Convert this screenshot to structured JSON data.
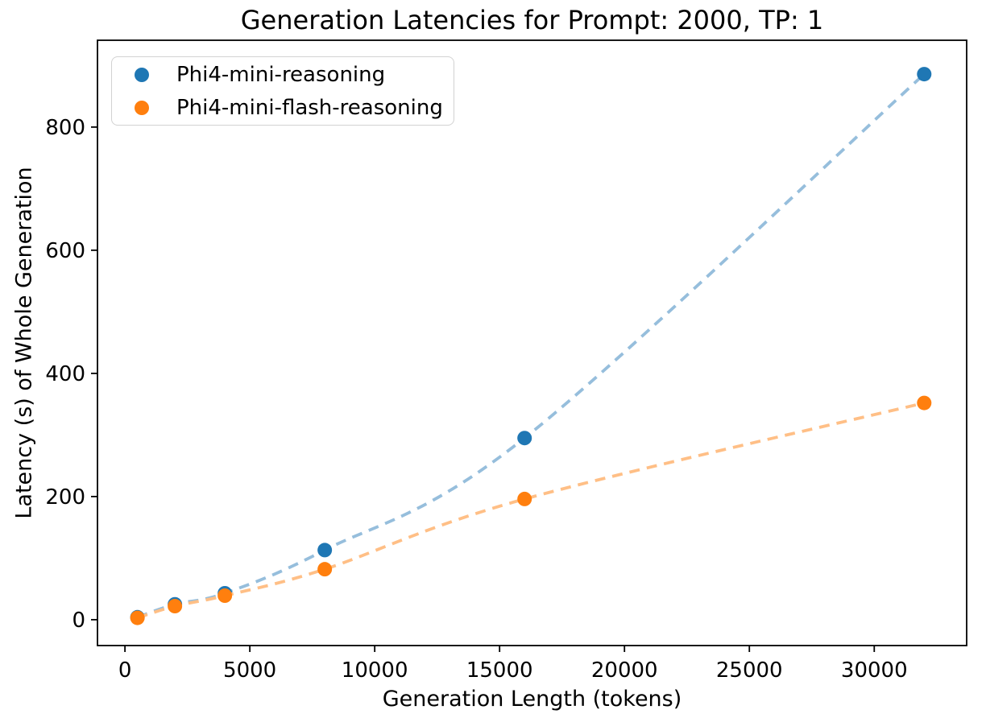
{
  "chart_data": {
    "type": "scatter",
    "title": "Generation Latencies for Prompt: 2000, TP: 1",
    "xlabel": "Generation Length (tokens)",
    "ylabel": "Latency (s) of Whole Generation",
    "xlim": [
      -1100,
      33700
    ],
    "ylim": [
      -42,
      941
    ],
    "x_ticks": [
      0,
      5000,
      10000,
      15000,
      20000,
      25000,
      30000
    ],
    "y_ticks": [
      0,
      200,
      400,
      600,
      800
    ],
    "grid": false,
    "legend_position": "upper left",
    "background_color": "#ffffff",
    "axis_color": "#000000",
    "series": [
      {
        "name": "Phi4-mini-reasoning",
        "marker": "circle",
        "color": "#1f77b4",
        "trendline_color": "#96bedc",
        "trendline_style": "dashed",
        "x": [
          500,
          2000,
          4000,
          8000,
          16000,
          32000
        ],
        "y": [
          4,
          25,
          43,
          113,
          295,
          886
        ]
      },
      {
        "name": "Phi4-mini-flash-reasoning",
        "marker": "circle",
        "color": "#ff7f0e",
        "trendline_color": "#ffbf86",
        "trendline_style": "dashed",
        "x": [
          500,
          2000,
          4000,
          8000,
          16000,
          32000
        ],
        "y": [
          3,
          22,
          39,
          82,
          196,
          352
        ]
      }
    ]
  }
}
